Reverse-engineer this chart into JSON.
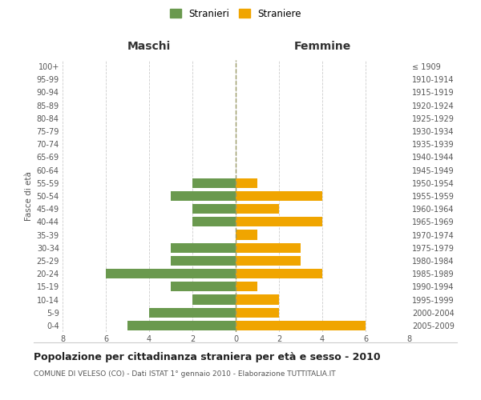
{
  "age_groups_bottom_to_top": [
    "0-4",
    "5-9",
    "10-14",
    "15-19",
    "20-24",
    "25-29",
    "30-34",
    "35-39",
    "40-44",
    "45-49",
    "50-54",
    "55-59",
    "60-64",
    "65-69",
    "70-74",
    "75-79",
    "80-84",
    "85-89",
    "90-94",
    "95-99",
    "100+"
  ],
  "birth_years_bottom_to_top": [
    "2005-2009",
    "2000-2004",
    "1995-1999",
    "1990-1994",
    "1985-1989",
    "1980-1984",
    "1975-1979",
    "1970-1974",
    "1965-1969",
    "1960-1964",
    "1955-1959",
    "1950-1954",
    "1945-1949",
    "1940-1944",
    "1935-1939",
    "1930-1934",
    "1925-1929",
    "1920-1924",
    "1915-1919",
    "1910-1914",
    "≤ 1909"
  ],
  "maschi_bottom_to_top": [
    5,
    4,
    2,
    3,
    6,
    3,
    3,
    0,
    2,
    2,
    3,
    2,
    0,
    0,
    0,
    0,
    0,
    0,
    0,
    0,
    0
  ],
  "femmine_bottom_to_top": [
    6,
    2,
    2,
    1,
    4,
    3,
    3,
    1,
    4,
    2,
    4,
    1,
    0,
    0,
    0,
    0,
    0,
    0,
    0,
    0,
    0
  ],
  "color_maschi": "#6a994e",
  "color_femmine": "#f0a500",
  "title": "Popolazione per cittadinanza straniera per età e sesso - 2010",
  "subtitle": "COMUNE DI VELESO (CO) - Dati ISTAT 1° gennaio 2010 - Elaborazione TUTTITALIA.IT",
  "xlabel_left": "Maschi",
  "xlabel_right": "Femmine",
  "ylabel_left": "Fasce di età",
  "legend_maschi": "Stranieri",
  "legend_femmine": "Straniere",
  "xlim": 8,
  "background_color": "#ffffff",
  "grid_color": "#cccccc"
}
